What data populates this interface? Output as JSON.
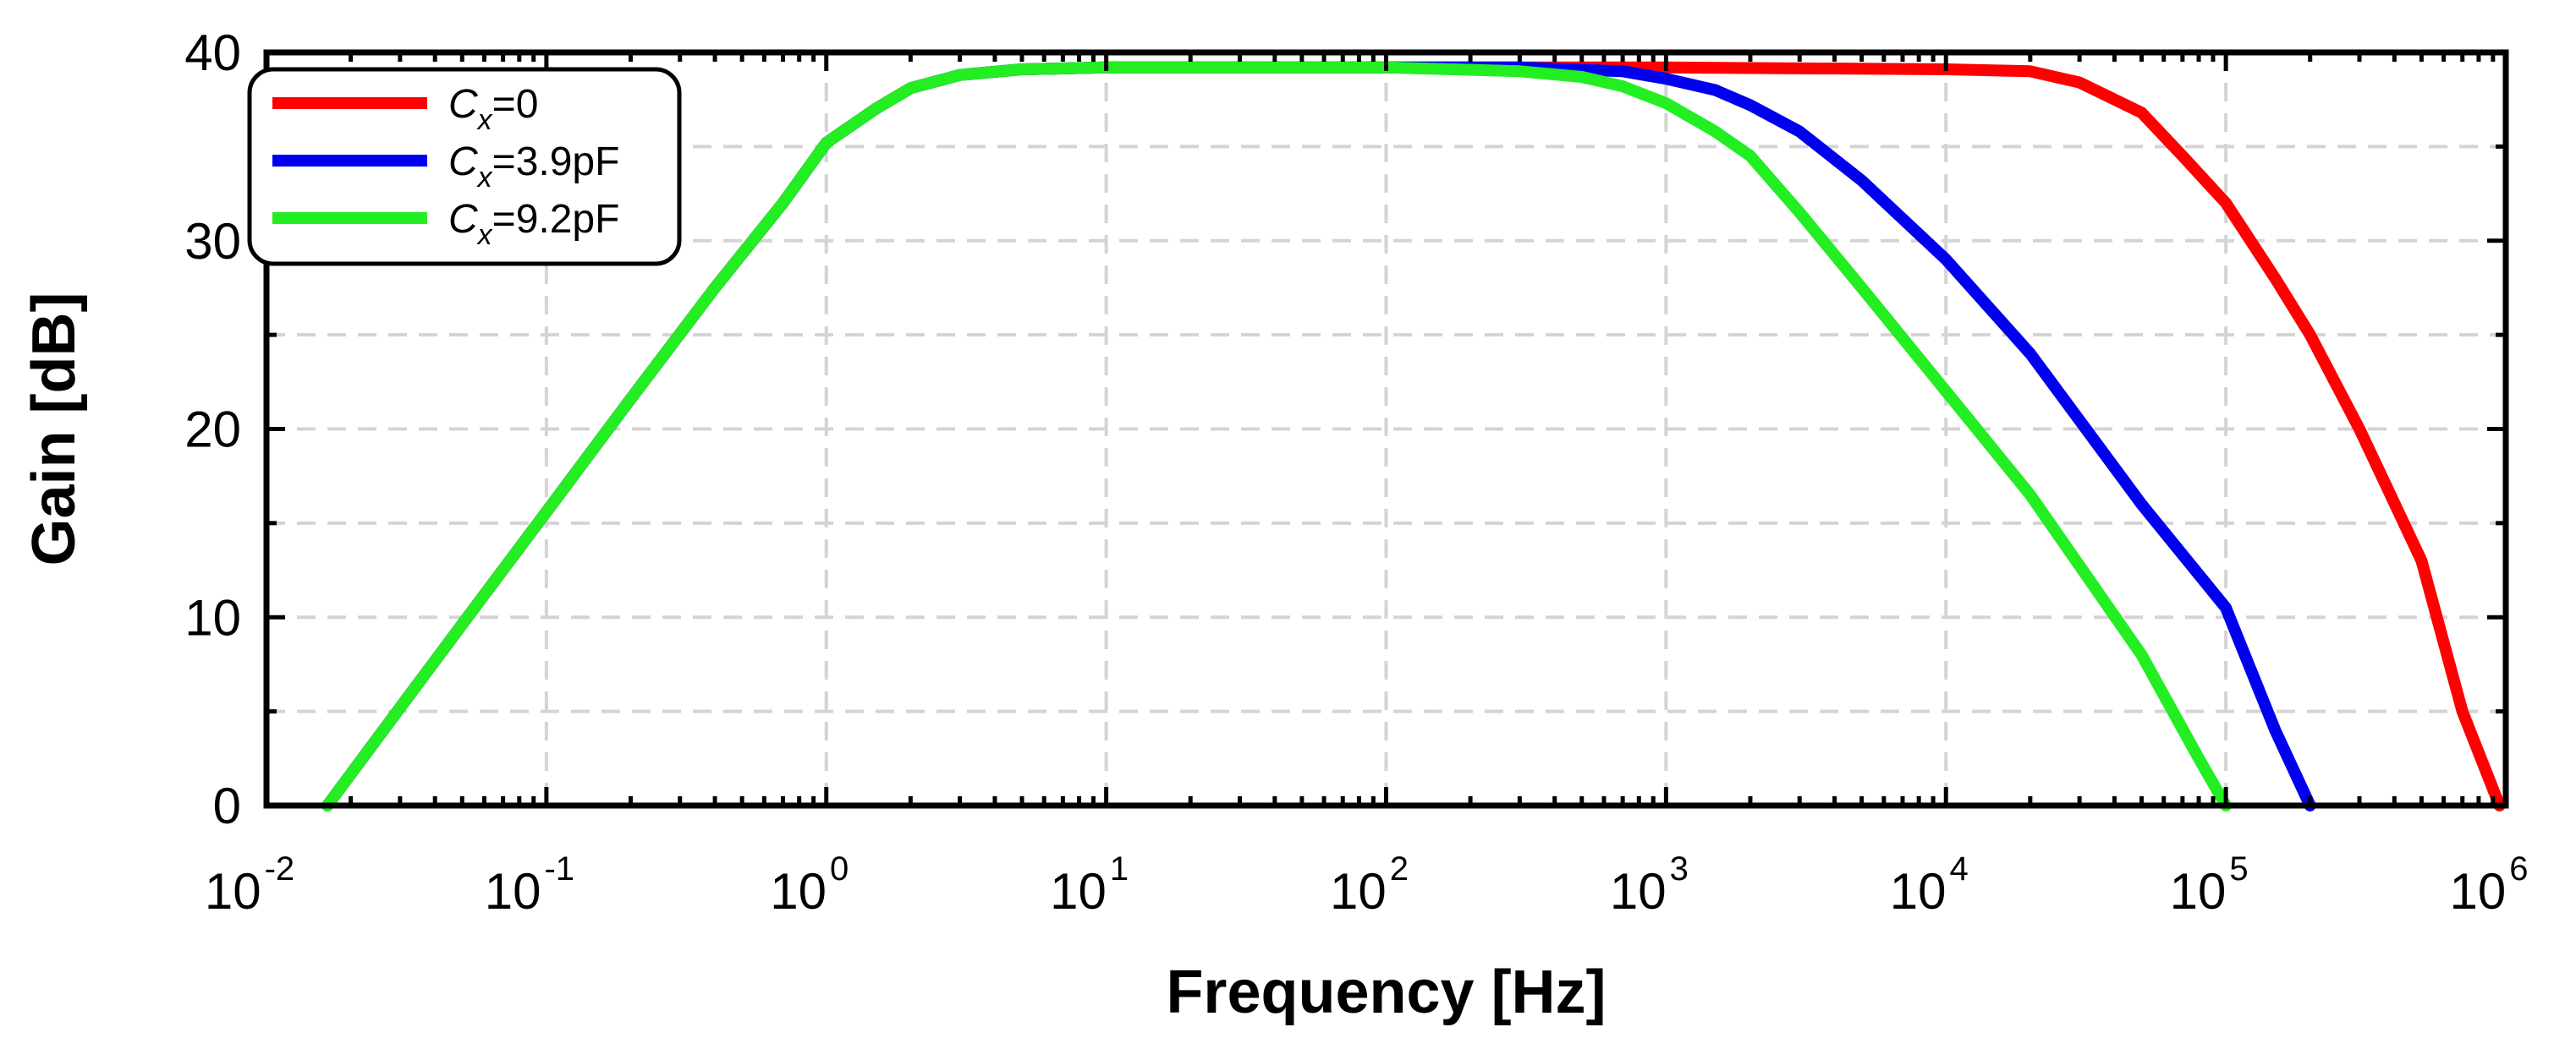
{
  "chart_data": {
    "type": "line",
    "title": "",
    "xlabel": "Frequency [Hz]",
    "ylabel": "Gain [dB]",
    "xscale": "log",
    "xlim": [
      0.01,
      1000000
    ],
    "ylim": [
      0,
      40
    ],
    "grid": true,
    "x_ticks": [
      {
        "base": "10",
        "exp": "-2",
        "value": 0.01
      },
      {
        "base": "10",
        "exp": "-1",
        "value": 0.1
      },
      {
        "base": "10",
        "exp": "0",
        "value": 1
      },
      {
        "base": "10",
        "exp": "1",
        "value": 10
      },
      {
        "base": "10",
        "exp": "2",
        "value": 100
      },
      {
        "base": "10",
        "exp": "3",
        "value": 1000
      },
      {
        "base": "10",
        "exp": "4",
        "value": 10000
      },
      {
        "base": "10",
        "exp": "5",
        "value": 100000
      },
      {
        "base": "10",
        "exp": "6",
        "value": 1000000
      }
    ],
    "y_ticks": [
      {
        "label": "0",
        "value": 0
      },
      {
        "label": "10",
        "value": 10
      },
      {
        "label": "20",
        "value": 20
      },
      {
        "label": "30",
        "value": 30
      },
      {
        "label": "40",
        "value": 40
      }
    ],
    "legend_position": "top-left",
    "series": [
      {
        "name": "Cx=0",
        "legend_symbol": "C",
        "legend_subscript": "x",
        "legend_suffix": "=0",
        "color": "#ff0000",
        "x": [
          0.0165,
          0.03,
          0.06,
          0.1,
          0.2,
          0.4,
          0.7,
          1.0,
          1.5,
          2.0,
          3.0,
          5.0,
          10,
          100,
          1000,
          10000,
          20000,
          30000,
          50000,
          70000,
          100000,
          150000,
          200000,
          300000,
          500000,
          700000,
          950000
        ],
        "y": [
          0,
          5.2,
          11.2,
          15.6,
          21.6,
          27.5,
          32.0,
          35.2,
          37.0,
          38.1,
          38.8,
          39.1,
          39.2,
          39.2,
          39.2,
          39.1,
          39.0,
          38.4,
          36.8,
          34.5,
          32.0,
          28.0,
          25.0,
          20.0,
          13.0,
          5.0,
          0
        ]
      },
      {
        "name": "Cx=3.9pF",
        "legend_symbol": "C",
        "legend_subscript": "x",
        "legend_suffix": "=3.9pF",
        "color": "#0000ee",
        "x": [
          0.0165,
          0.03,
          0.06,
          0.1,
          0.2,
          0.4,
          0.7,
          1.0,
          1.5,
          2.0,
          3.0,
          5.0,
          10,
          100,
          300,
          700,
          1000,
          1500,
          2000,
          3000,
          5000,
          10000,
          20000,
          50000,
          100000,
          150000,
          200000
        ],
        "y": [
          0,
          5.2,
          11.2,
          15.6,
          21.6,
          27.5,
          32.0,
          35.2,
          37.0,
          38.1,
          38.8,
          39.1,
          39.2,
          39.2,
          39.2,
          39.0,
          38.6,
          38.0,
          37.2,
          35.8,
          33.2,
          29.0,
          24.0,
          16.0,
          10.5,
          4.0,
          0
        ]
      },
      {
        "name": "Cx=9.2pF",
        "legend_symbol": "C",
        "legend_subscript": "x",
        "legend_suffix": "=9.2pF",
        "color": "#22ee22",
        "x": [
          0.0165,
          0.03,
          0.06,
          0.1,
          0.2,
          0.4,
          0.7,
          1.0,
          1.5,
          2.0,
          3.0,
          5.0,
          10,
          100,
          300,
          500,
          700,
          1000,
          1500,
          2000,
          3000,
          5000,
          10000,
          20000,
          50000,
          80000,
          100000
        ],
        "y": [
          0,
          5.2,
          11.2,
          15.6,
          21.6,
          27.5,
          32.0,
          35.2,
          37.0,
          38.1,
          38.8,
          39.1,
          39.2,
          39.2,
          39.0,
          38.7,
          38.2,
          37.3,
          35.8,
          34.5,
          31.5,
          27.5,
          22.0,
          16.5,
          8.0,
          2.5,
          0
        ]
      }
    ]
  }
}
